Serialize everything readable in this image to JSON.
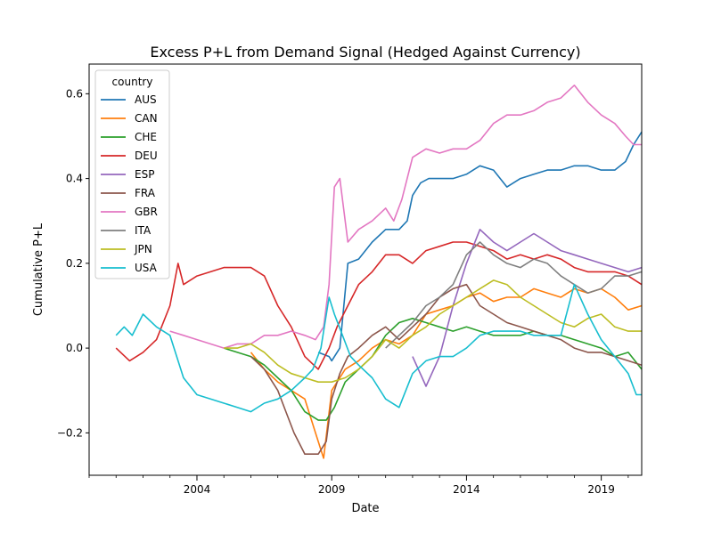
{
  "chart_data": {
    "type": "line",
    "title": "Excess P+L from Demand Signal (Hedged Against Currency)",
    "xlabel": "Date",
    "ylabel": "Cumulative P+L",
    "xlim": [
      2000.0,
      2020.5
    ],
    "ylim": [
      -0.3,
      0.67
    ],
    "xticks": [
      2004,
      2009,
      2014,
      2019
    ],
    "yticks": [
      -0.2,
      0.0,
      0.2,
      0.4,
      0.6
    ],
    "ytick_labels": [
      "−0.2",
      "0.0",
      "0.2",
      "0.4",
      "0.6"
    ],
    "grid": false,
    "legend": {
      "title": "country",
      "placement": "top-left"
    },
    "series": [
      {
        "name": "AUS",
        "color": "#1f77b4",
        "x": [
          2008.5,
          2008.9,
          2009.0,
          2009.3,
          2009.6,
          2010.0,
          2010.5,
          2011.0,
          2011.5,
          2011.8,
          2012.0,
          2012.3,
          2012.6,
          2013.0,
          2013.5,
          2014.0,
          2014.5,
          2015.0,
          2015.5,
          2016.0,
          2016.5,
          2017.0,
          2017.5,
          2018.0,
          2018.5,
          2019.0,
          2019.5,
          2019.9,
          2020.2,
          2020.5
        ],
        "y": [
          -0.01,
          -0.02,
          -0.03,
          0.0,
          0.2,
          0.21,
          0.25,
          0.28,
          0.28,
          0.3,
          0.36,
          0.39,
          0.4,
          0.4,
          0.4,
          0.41,
          0.43,
          0.42,
          0.38,
          0.4,
          0.41,
          0.42,
          0.42,
          0.43,
          0.43,
          0.42,
          0.42,
          0.44,
          0.48,
          0.51
        ]
      },
      {
        "name": "CAN",
        "color": "#ff7f0e",
        "x": [
          2006.0,
          2006.5,
          2007.0,
          2007.5,
          2008.0,
          2008.4,
          2008.7,
          2009.0,
          2009.5,
          2010.0,
          2010.5,
          2011.0,
          2011.5,
          2012.0,
          2012.5,
          2013.0,
          2013.5,
          2014.0,
          2014.5,
          2015.0,
          2015.5,
          2016.0,
          2016.5,
          2017.0,
          2017.5,
          2018.0,
          2018.5,
          2019.0,
          2019.5,
          2020.0,
          2020.5
        ],
        "y": [
          -0.01,
          -0.05,
          -0.08,
          -0.1,
          -0.12,
          -0.2,
          -0.26,
          -0.1,
          -0.05,
          -0.03,
          0.0,
          0.02,
          0.01,
          0.03,
          0.08,
          0.09,
          0.1,
          0.12,
          0.13,
          0.11,
          0.12,
          0.12,
          0.14,
          0.13,
          0.12,
          0.14,
          0.13,
          0.14,
          0.12,
          0.09,
          0.1
        ]
      },
      {
        "name": "CHE",
        "color": "#2ca02c",
        "x": [
          2005.0,
          2005.5,
          2006.0,
          2006.5,
          2007.0,
          2007.5,
          2008.0,
          2008.5,
          2008.8,
          2009.1,
          2009.5,
          2010.0,
          2010.5,
          2011.0,
          2011.5,
          2012.0,
          2012.5,
          2013.0,
          2013.5,
          2014.0,
          2014.5,
          2015.0,
          2015.5,
          2016.0,
          2016.5,
          2017.0,
          2017.5,
          2018.0,
          2018.5,
          2019.0,
          2019.5,
          2020.0,
          2020.5
        ],
        "y": [
          0.0,
          -0.01,
          -0.02,
          -0.04,
          -0.07,
          -0.1,
          -0.15,
          -0.17,
          -0.17,
          -0.14,
          -0.08,
          -0.05,
          -0.02,
          0.03,
          0.06,
          0.07,
          0.06,
          0.05,
          0.04,
          0.05,
          0.04,
          0.03,
          0.03,
          0.03,
          0.04,
          0.03,
          0.03,
          0.02,
          0.01,
          0.0,
          -0.02,
          -0.01,
          -0.05
        ]
      },
      {
        "name": "DEU",
        "color": "#d62728",
        "x": [
          2001.0,
          2001.5,
          2002.0,
          2002.5,
          2003.0,
          2003.3,
          2003.5,
          2004.0,
          2004.5,
          2005.0,
          2005.5,
          2006.0,
          2006.5,
          2007.0,
          2007.5,
          2008.0,
          2008.5,
          2008.9,
          2009.2,
          2009.6,
          2010.0,
          2010.5,
          2011.0,
          2011.5,
          2012.0,
          2012.5,
          2013.0,
          2013.5,
          2014.0,
          2014.5,
          2015.0,
          2015.5,
          2016.0,
          2016.5,
          2017.0,
          2017.5,
          2018.0,
          2018.5,
          2019.0,
          2019.5,
          2020.0,
          2020.5
        ],
        "y": [
          0.0,
          -0.03,
          -0.01,
          0.02,
          0.1,
          0.2,
          0.15,
          0.17,
          0.18,
          0.19,
          0.19,
          0.19,
          0.17,
          0.1,
          0.05,
          -0.02,
          -0.05,
          0.0,
          0.05,
          0.1,
          0.15,
          0.18,
          0.22,
          0.22,
          0.2,
          0.23,
          0.24,
          0.25,
          0.25,
          0.24,
          0.23,
          0.21,
          0.22,
          0.21,
          0.22,
          0.21,
          0.19,
          0.18,
          0.18,
          0.18,
          0.17,
          0.15
        ]
      },
      {
        "name": "ESP",
        "color": "#9467bd",
        "x": [
          2012.0,
          2012.5,
          2013.0,
          2013.5,
          2014.0,
          2014.5,
          2015.0,
          2015.5,
          2016.0,
          2016.5,
          2017.0,
          2017.5,
          2018.0,
          2018.5,
          2019.0,
          2019.5,
          2020.0,
          2020.5
        ],
        "y": [
          -0.02,
          -0.09,
          -0.02,
          0.1,
          0.2,
          0.28,
          0.25,
          0.23,
          0.25,
          0.27,
          0.25,
          0.23,
          0.22,
          0.21,
          0.2,
          0.19,
          0.18,
          0.19
        ]
      },
      {
        "name": "FRA",
        "color": "#8c564b",
        "x": [
          2006.0,
          2006.5,
          2007.0,
          2007.3,
          2007.6,
          2008.0,
          2008.5,
          2008.8,
          2009.0,
          2009.3,
          2009.6,
          2010.0,
          2010.5,
          2011.0,
          2011.5,
          2012.0,
          2012.5,
          2013.0,
          2013.5,
          2014.0,
          2014.5,
          2015.0,
          2015.5,
          2016.0,
          2016.5,
          2017.0,
          2017.5,
          2018.0,
          2018.5,
          2019.0,
          2019.5,
          2020.0,
          2020.5
        ],
        "y": [
          -0.02,
          -0.05,
          -0.1,
          -0.15,
          -0.2,
          -0.25,
          -0.25,
          -0.22,
          -0.12,
          -0.06,
          -0.02,
          0.0,
          0.03,
          0.05,
          0.02,
          0.05,
          0.08,
          0.12,
          0.14,
          0.15,
          0.1,
          0.08,
          0.06,
          0.05,
          0.04,
          0.03,
          0.02,
          0.0,
          -0.01,
          -0.01,
          -0.02,
          -0.03,
          -0.04
        ]
      },
      {
        "name": "GBR",
        "color": "#e377c2",
        "x": [
          2003.0,
          2003.5,
          2004.0,
          2004.5,
          2005.0,
          2005.5,
          2006.0,
          2006.5,
          2007.0,
          2007.5,
          2008.0,
          2008.4,
          2008.7,
          2008.9,
          2009.1,
          2009.3,
          2009.6,
          2010.0,
          2010.5,
          2011.0,
          2011.3,
          2011.6,
          2012.0,
          2012.5,
          2013.0,
          2013.5,
          2014.0,
          2014.5,
          2015.0,
          2015.5,
          2016.0,
          2016.5,
          2017.0,
          2017.5,
          2018.0,
          2018.5,
          2019.0,
          2019.5,
          2019.9,
          2020.2,
          2020.5
        ],
        "y": [
          0.04,
          0.03,
          0.02,
          0.01,
          0.0,
          0.01,
          0.01,
          0.03,
          0.03,
          0.04,
          0.03,
          0.02,
          0.05,
          0.15,
          0.38,
          0.4,
          0.25,
          0.28,
          0.3,
          0.33,
          0.3,
          0.35,
          0.45,
          0.47,
          0.46,
          0.47,
          0.47,
          0.49,
          0.53,
          0.55,
          0.55,
          0.56,
          0.58,
          0.59,
          0.62,
          0.58,
          0.55,
          0.53,
          0.5,
          0.48,
          0.48
        ]
      },
      {
        "name": "ITA",
        "color": "#7f7f7f",
        "x": [
          2011.0,
          2011.5,
          2012.0,
          2012.5,
          2013.0,
          2013.5,
          2014.0,
          2014.5,
          2015.0,
          2015.5,
          2016.0,
          2016.5,
          2017.0,
          2017.5,
          2018.0,
          2018.5,
          2019.0,
          2019.5,
          2020.0,
          2020.5
        ],
        "y": [
          0.0,
          0.03,
          0.06,
          0.1,
          0.12,
          0.15,
          0.22,
          0.25,
          0.22,
          0.2,
          0.19,
          0.21,
          0.2,
          0.17,
          0.15,
          0.13,
          0.14,
          0.17,
          0.17,
          0.18
        ]
      },
      {
        "name": "JPN",
        "color": "#bcbd22",
        "x": [
          2005.0,
          2005.5,
          2006.0,
          2006.5,
          2007.0,
          2007.5,
          2008.0,
          2008.5,
          2009.0,
          2009.5,
          2010.0,
          2010.5,
          2011.0,
          2011.5,
          2012.0,
          2012.5,
          2013.0,
          2013.5,
          2014.0,
          2014.5,
          2015.0,
          2015.5,
          2016.0,
          2016.5,
          2017.0,
          2017.5,
          2018.0,
          2018.5,
          2019.0,
          2019.5,
          2020.0,
          2020.5
        ],
        "y": [
          0.0,
          0.0,
          0.01,
          -0.01,
          -0.04,
          -0.06,
          -0.07,
          -0.08,
          -0.08,
          -0.07,
          -0.05,
          -0.02,
          0.02,
          0.0,
          0.03,
          0.05,
          0.08,
          0.1,
          0.12,
          0.14,
          0.16,
          0.15,
          0.12,
          0.1,
          0.08,
          0.06,
          0.05,
          0.07,
          0.08,
          0.05,
          0.04,
          0.04
        ]
      },
      {
        "name": "USA",
        "color": "#17becf",
        "x": [
          2001.0,
          2001.3,
          2001.6,
          2002.0,
          2002.5,
          2003.0,
          2003.5,
          2004.0,
          2004.5,
          2005.0,
          2005.5,
          2006.0,
          2006.5,
          2007.0,
          2007.5,
          2008.0,
          2008.3,
          2008.6,
          2008.9,
          2009.1,
          2009.4,
          2009.7,
          2010.0,
          2010.5,
          2011.0,
          2011.5,
          2012.0,
          2012.5,
          2013.0,
          2013.5,
          2014.0,
          2014.5,
          2015.0,
          2015.5,
          2016.0,
          2016.5,
          2017.0,
          2017.5,
          2018.0,
          2018.5,
          2019.0,
          2019.5,
          2020.0,
          2020.3,
          2020.5
        ],
        "y": [
          0.03,
          0.05,
          0.03,
          0.08,
          0.05,
          0.03,
          -0.07,
          -0.11,
          -0.12,
          -0.13,
          -0.14,
          -0.15,
          -0.13,
          -0.12,
          -0.1,
          -0.07,
          -0.05,
          0.0,
          0.12,
          0.08,
          0.03,
          -0.02,
          -0.04,
          -0.07,
          -0.12,
          -0.14,
          -0.06,
          -0.03,
          -0.02,
          -0.02,
          0.0,
          0.03,
          0.04,
          0.04,
          0.04,
          0.03,
          0.03,
          0.03,
          0.15,
          0.08,
          0.02,
          -0.02,
          -0.06,
          -0.11,
          -0.11
        ]
      }
    ]
  }
}
